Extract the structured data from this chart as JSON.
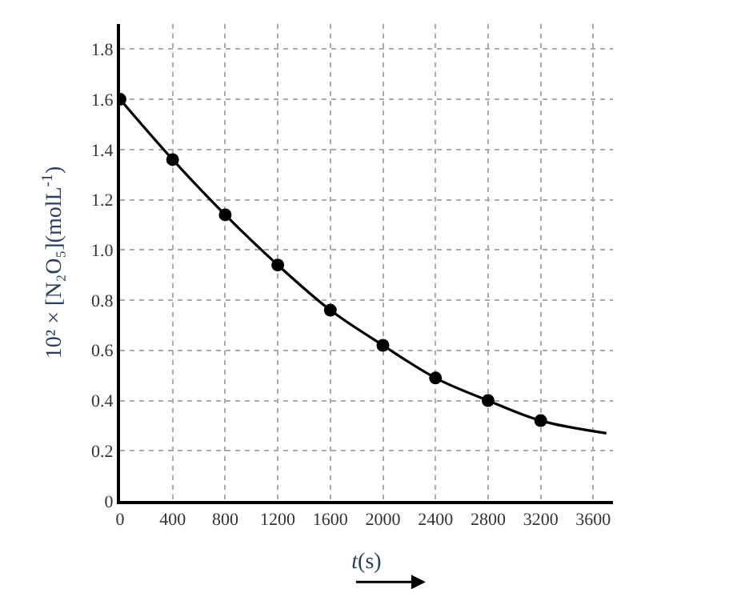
{
  "chart_data": {
    "type": "scatter",
    "xlabel": "t(s)",
    "ylabel": "10² × [N₂O₅](molL$^{-1}$)",
    "xlim": [
      0,
      3750
    ],
    "xticks": [
      0,
      400,
      800,
      1200,
      1600,
      2000,
      2400,
      2800,
      3200,
      3600
    ],
    "ylim": [
      0,
      1.9
    ],
    "yticks": [
      0,
      0.2,
      0.4,
      0.6,
      0.8,
      {
        "value": 1,
        "label": "1.0"
      },
      1.2,
      1.4,
      1.6,
      1.8
    ],
    "grid": true,
    "line_style": "solid",
    "series": [
      {
        "marker": "circle",
        "color": "#000000",
        "x": [
          0,
          400,
          800,
          1200,
          1600,
          2000,
          2400,
          2800,
          3200
        ],
        "values": [
          1.6,
          1.36,
          1.14,
          0.94,
          0.76,
          0.62,
          0.49,
          0.4,
          0.32
        ]
      },
      {
        "type": "line",
        "marker": "none",
        "color": "#000000",
        "x": [
          0,
          400,
          800,
          1200,
          1600,
          2000,
          2400,
          2800,
          3200,
          3700
        ],
        "values": [
          1.6,
          1.36,
          1.14,
          0.94,
          0.76,
          0.62,
          0.49,
          0.4,
          0.32,
          0.27
        ]
      }
    ]
  }
}
